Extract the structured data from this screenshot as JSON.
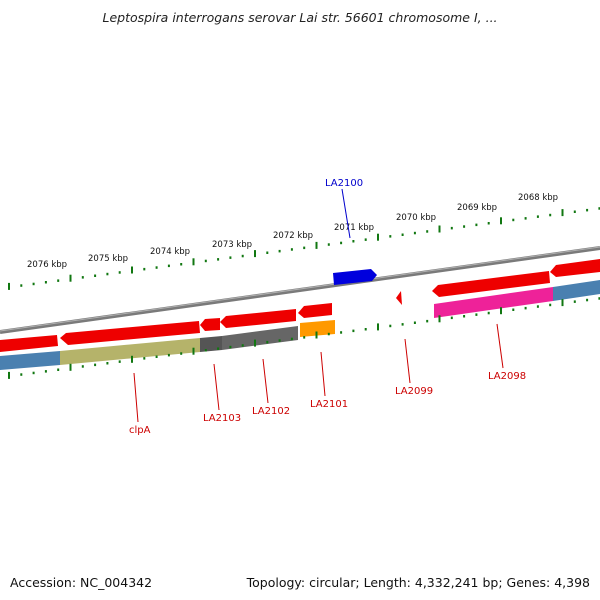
{
  "title": "Leptospira interrogans serovar Lai str. 56601 chromosome I, ...",
  "footer": {
    "accession": "Accession: NC_004342",
    "info": "Topology: circular; Length: 4,332,241 bp; Genes: 4,398"
  },
  "colors": {
    "backbone": "#888888",
    "gene_red": "#ee0000",
    "gene_blue": "#0000dd",
    "feature_olive": "#b5b36a",
    "feature_gray": "#666666",
    "feature_orange": "#ff9900",
    "feature_steelblue": "#4a80b0",
    "feature_magenta": "#ee2299",
    "ticks": "#117711",
    "label_red": "#cc0000",
    "label_blue": "#0000cc"
  },
  "tick_labels": [
    "2076 kbp",
    "2075 kbp",
    "2074 kbp",
    "2073 kbp",
    "2072 kbp",
    "2071 kbp",
    "2070 kbp",
    "2069 kbp",
    "2068 kbp"
  ],
  "gene_labels": [
    {
      "id": "clpA",
      "text": "clpA",
      "color": "red"
    },
    {
      "id": "la2103",
      "text": "LA2103",
      "color": "red"
    },
    {
      "id": "la2102",
      "text": "LA2102",
      "color": "red"
    },
    {
      "id": "la2101",
      "text": "LA2101",
      "color": "red"
    },
    {
      "id": "la2100",
      "text": "LA2100",
      "color": "blue"
    },
    {
      "id": "la2099",
      "text": "LA2099",
      "color": "red"
    },
    {
      "id": "la2098",
      "text": "LA2098",
      "color": "red"
    }
  ]
}
